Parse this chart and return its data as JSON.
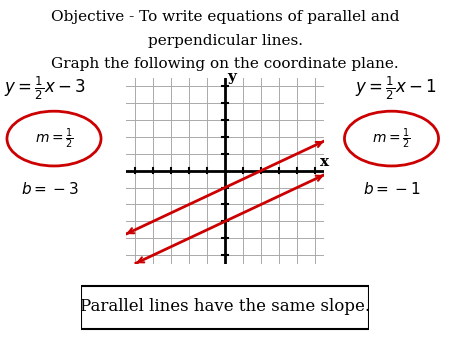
{
  "title_line1": "Objective - To write equations of parallel and",
  "title_line2": "perpendicular lines.",
  "title_line3": "Graph the following on the coordinate plane.",
  "eq1": "y = \\frac{1}{2}x - 3",
  "eq2": "y = \\frac{1}{2}x - 1",
  "m1": "m = \\frac{1}{2}",
  "b1": "b = -3",
  "m2": "m = \\frac{1}{2}",
  "b2": "b = -1",
  "slope": 0.5,
  "intercept1": -3,
  "intercept2": -1,
  "grid_range": [
    -5,
    5
  ],
  "line_color": "#cc0000",
  "grid_color": "#aaaaaa",
  "axis_color": "#000000",
  "ellipse_color": "#cc0000",
  "box_color": "#000000",
  "bg_color": "#ffffff",
  "parallel_text": "Parallel lines have the same slope.",
  "title_fontsize": 11,
  "eq_fontsize": 12,
  "label_fontsize": 10,
  "parallel_fontsize": 12
}
